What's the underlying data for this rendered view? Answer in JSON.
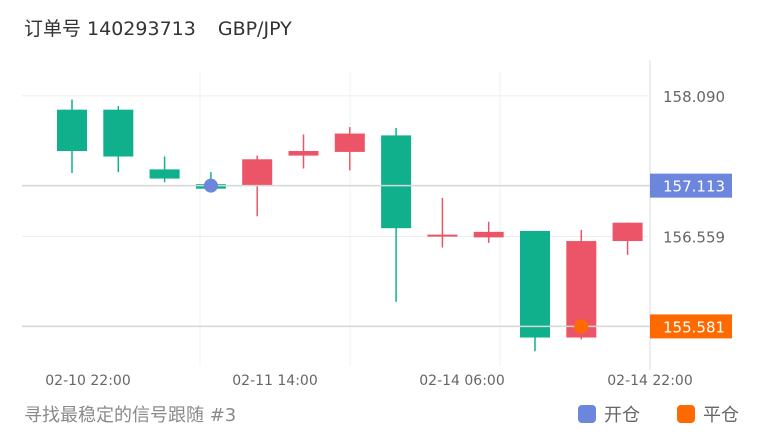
{
  "header": {
    "order_label": "订单号 140293713",
    "pair": "GBP/JPY"
  },
  "footer": {
    "subtitle": "寻找最稳定的信号跟随 #3"
  },
  "legend": [
    {
      "label": "开仓",
      "color": "#6b86dc"
    },
    {
      "label": "平仓",
      "color": "#ff6a00"
    }
  ],
  "colors": {
    "up": "#10b08d",
    "down": "#ec5567",
    "open_marker": "#6b86dc",
    "close_marker": "#ff6a00"
  },
  "chart_data": {
    "type": "candlestick",
    "x_ticks": [
      "02-10 22:00",
      "02-11 14:00",
      "02-14 06:00",
      "02-14 22:00"
    ],
    "y_ticks": [
      "158.090",
      "156.559"
    ],
    "ylim": [
      155.15,
      158.35
    ],
    "candles": [
      {
        "open": 157.49,
        "close": 157.94,
        "high": 158.05,
        "low": 157.25
      },
      {
        "open": 157.43,
        "close": 157.94,
        "high": 157.98,
        "low": 157.26
      },
      {
        "open": 157.19,
        "close": 157.29,
        "high": 157.43,
        "low": 157.15
      },
      {
        "open": 157.08,
        "close": 157.13,
        "high": 157.26,
        "low": 157.05
      },
      {
        "open": 157.4,
        "close": 157.12,
        "high": 157.44,
        "low": 156.78
      },
      {
        "open": 157.49,
        "close": 157.44,
        "high": 157.67,
        "low": 157.3
      },
      {
        "open": 157.68,
        "close": 157.48,
        "high": 157.75,
        "low": 157.28
      },
      {
        "open": 156.65,
        "close": 157.66,
        "high": 157.74,
        "low": 155.85
      },
      {
        "open": 156.58,
        "close": 156.56,
        "high": 156.98,
        "low": 156.44
      },
      {
        "open": 156.61,
        "close": 156.55,
        "high": 156.72,
        "low": 156.49
      },
      {
        "open": 155.46,
        "close": 156.62,
        "high": 156.62,
        "low": 155.31
      },
      {
        "open": 156.51,
        "close": 155.46,
        "high": 156.63,
        "low": 155.44
      },
      {
        "open": 156.71,
        "close": 156.51,
        "high": 156.71,
        "low": 156.36
      }
    ],
    "open_trade": {
      "price": 157.113,
      "label": "157.113",
      "candle_index": 3
    },
    "close_trade": {
      "price": 155.581,
      "label": "155.581",
      "candle_index": 11
    }
  }
}
